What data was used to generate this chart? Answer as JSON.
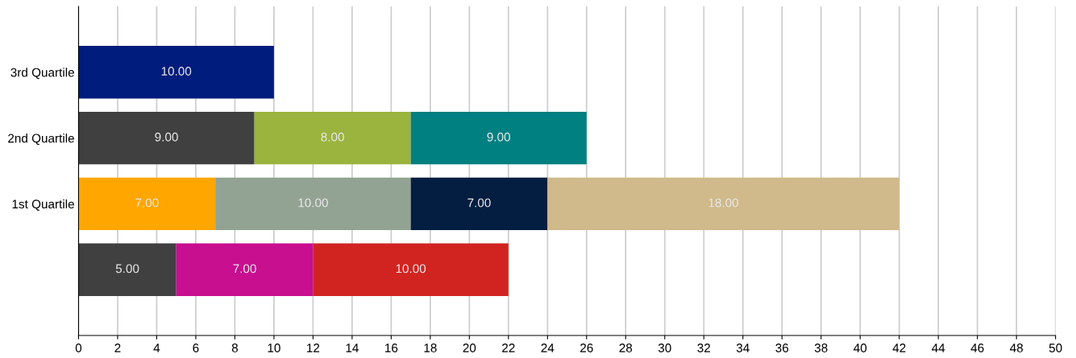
{
  "chart_data": {
    "type": "bar",
    "orientation": "horizontal",
    "stacked": true,
    "categories": [
      "3rd Quartile",
      "2nd Quartile",
      "1st Quartile",
      null
    ],
    "series": [
      {
        "colors": [
          "#001c7c",
          "#404040",
          "#ffa600",
          "#404040"
        ],
        "values": [
          10,
          9,
          7,
          5
        ],
        "value_labels": [
          "10.00",
          "9.00",
          "7.00",
          "5.00"
        ]
      },
      {
        "colors": [
          "#ffffff",
          "#9bb43e",
          "#93a393",
          "#c80f90"
        ],
        "values": [
          null,
          8,
          10,
          7
        ],
        "value_labels": [
          null,
          "8.00",
          "10.00",
          "7.00"
        ]
      },
      {
        "colors": [
          "#ffffff",
          "#008080",
          "#031e40",
          "#d12420"
        ],
        "values": [
          null,
          9,
          7,
          10
        ],
        "value_labels": [
          null,
          "9.00",
          "7.00",
          "10.00"
        ]
      },
      {
        "colors": [
          "#ffffff",
          "#ffffff",
          "#d0b98a",
          "#ffffff"
        ],
        "values": [
          null,
          null,
          18,
          null
        ],
        "value_labels": [
          null,
          null,
          "18.00",
          null
        ]
      }
    ],
    "xlim": [
      0,
      50
    ],
    "xticks": [
      0,
      2,
      4,
      6,
      8,
      10,
      12,
      14,
      16,
      18,
      20,
      22,
      24,
      26,
      28,
      30,
      32,
      34,
      36,
      38,
      40,
      42,
      44,
      46,
      48,
      50
    ],
    "grid": "x"
  }
}
